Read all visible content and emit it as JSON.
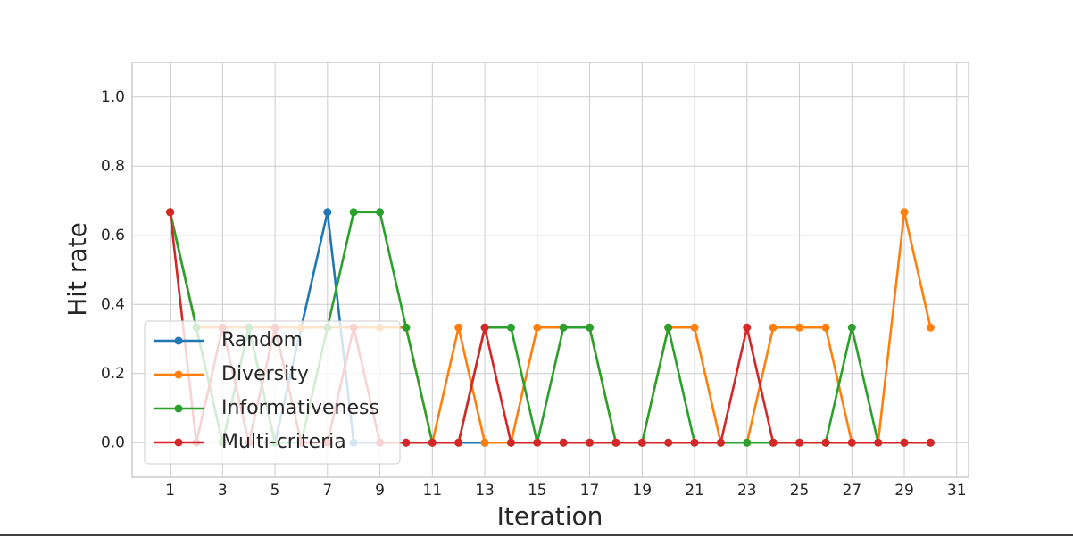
{
  "chart_data": {
    "type": "line",
    "xlabel": "Iteration",
    "ylabel": "Hit rate",
    "x": [
      1,
      2,
      3,
      4,
      5,
      6,
      7,
      8,
      9,
      10,
      11,
      12,
      13,
      14,
      15,
      16,
      17,
      18,
      19,
      20,
      21,
      22,
      23,
      24,
      25,
      26,
      27,
      28,
      29,
      30
    ],
    "series": [
      {
        "name": "Random",
        "color": "#1f77b4",
        "values": [
          0.667,
          0.333,
          0,
          0.333,
          0,
          0.333,
          0.667,
          0,
          0,
          0,
          0,
          0,
          0,
          0,
          0,
          0,
          0,
          0,
          0,
          0,
          0,
          0,
          0,
          0,
          0,
          0,
          0,
          0,
          0,
          0
        ]
      },
      {
        "name": "Diversity",
        "color": "#ff7f0e",
        "values": [
          0.667,
          0.333,
          0.333,
          0.333,
          0.333,
          0.333,
          0.333,
          0.333,
          0.333,
          0.333,
          0,
          0.333,
          0,
          0,
          0.333,
          0.333,
          0.333,
          0,
          0,
          0.333,
          0.333,
          0,
          0,
          0.333,
          0.333,
          0.333,
          0,
          0,
          0.667,
          0.333
        ]
      },
      {
        "name": "Informativeness",
        "color": "#2ca02c",
        "values": [
          0.667,
          0.333,
          0,
          0.333,
          0,
          0,
          0.333,
          0.667,
          0.667,
          0.333,
          0,
          0,
          0.333,
          0.333,
          0,
          0.333,
          0.333,
          0,
          0,
          0.333,
          0,
          0,
          0,
          0,
          0,
          0,
          0.333,
          0,
          0,
          0
        ]
      },
      {
        "name": "Multi-criteria",
        "color": "#d62728",
        "values": [
          0.667,
          0,
          0.333,
          0,
          0.333,
          0,
          0,
          0.333,
          0,
          0,
          0,
          0,
          0.333,
          0,
          0,
          0,
          0,
          0,
          0,
          0,
          0,
          0,
          0.333,
          0,
          0,
          0,
          0,
          0,
          0,
          0
        ]
      }
    ],
    "xlim": [
      -0.45,
      31.45
    ],
    "xticks": [
      1,
      3,
      5,
      7,
      9,
      11,
      13,
      15,
      17,
      19,
      21,
      23,
      25,
      27,
      29,
      31
    ],
    "ylim": [
      -0.1,
      1.1
    ],
    "yticks": [
      {
        "value": 0,
        "label": "0.0"
      },
      {
        "value": 0.2,
        "label": "0.2"
      },
      {
        "value": 0.4,
        "label": "0.4"
      },
      {
        "value": 0.6,
        "label": "0.6"
      },
      {
        "value": 0.8,
        "label": "0.8"
      },
      {
        "value": 1,
        "label": "1.0"
      }
    ],
    "grid": true,
    "legend": "lower left"
  }
}
